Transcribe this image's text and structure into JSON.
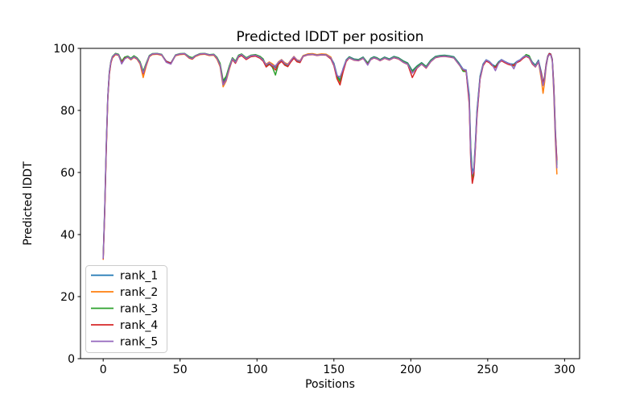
{
  "chart_data": {
    "type": "line",
    "title": "Predicted lDDT per position",
    "xlabel": "Positions",
    "ylabel": "Predicted lDDT",
    "xlim": [
      -14.75,
      309.75
    ],
    "ylim": [
      0,
      100
    ],
    "xticks": [
      0,
      50,
      100,
      150,
      200,
      250,
      300
    ],
    "yticks": [
      0,
      20,
      40,
      60,
      80,
      100
    ],
    "grid": false,
    "legend_position": "lower left",
    "x": [
      0,
      1,
      2,
      3,
      4,
      5,
      6,
      8,
      10,
      12,
      14,
      16,
      18,
      20,
      22,
      24,
      26,
      28,
      30,
      32,
      35,
      38,
      41,
      44,
      47,
      50,
      53,
      56,
      58,
      60,
      63,
      66,
      69,
      72,
      74,
      76,
      78,
      80,
      82,
      84,
      86,
      88,
      90,
      93,
      96,
      99,
      102,
      104,
      106,
      108,
      110,
      112,
      114,
      116,
      118,
      120,
      122,
      124,
      126,
      128,
      130,
      133,
      136,
      139,
      142,
      145,
      148,
      150,
      152,
      154,
      156,
      158,
      160,
      163,
      166,
      169,
      172,
      174,
      176,
      178,
      180,
      183,
      186,
      189,
      192,
      195,
      198,
      201,
      204,
      207,
      210,
      213,
      216,
      219,
      222,
      225,
      228,
      231,
      234,
      236,
      238,
      239,
      240,
      241,
      242,
      243,
      245,
      247,
      249,
      251,
      253,
      255,
      257,
      259,
      261,
      263,
      265,
      267,
      269,
      271,
      273,
      275,
      277,
      279,
      281,
      283,
      285,
      286,
      287,
      288,
      289,
      290,
      291,
      292,
      293,
      294,
      295
    ],
    "series": [
      {
        "name": "rank_1",
        "color": "#1f77b4",
        "values": [
          32.5,
          48,
          68,
          84,
          92,
          95.5,
          97.2,
          98.3,
          98.0,
          95.6,
          97.0,
          97.4,
          96.6,
          97.4,
          96.8,
          95.5,
          92.2,
          95.0,
          97.6,
          98.2,
          98.3,
          98.0,
          95.9,
          95.3,
          97.8,
          98.2,
          98.3,
          97.1,
          96.8,
          97.6,
          98.2,
          98.3,
          97.9,
          98.0,
          96.9,
          94.8,
          89.2,
          90.5,
          94.0,
          96.8,
          95.7,
          97.6,
          98.1,
          96.8,
          97.7,
          97.9,
          97.2,
          96.4,
          94.6,
          95.3,
          94.7,
          93.8,
          95.4,
          96.2,
          95.1,
          94.6,
          96.0,
          97.2,
          96.1,
          95.8,
          97.6,
          98.1,
          98.2,
          97.9,
          98.1,
          98.0,
          97.0,
          95.2,
          91.5,
          89.8,
          93.5,
          96.3,
          97.3,
          96.6,
          96.4,
          97.2,
          95.3,
          96.8,
          97.3,
          97.0,
          96.4,
          97.2,
          96.6,
          97.4,
          97.0,
          96.0,
          95.3,
          92.8,
          94.3,
          95.4,
          94.2,
          96.2,
          97.4,
          97.7,
          97.8,
          97.6,
          97.3,
          95.5,
          93.3,
          93.0,
          85.0,
          68.0,
          60.0,
          61.5,
          70.0,
          80.0,
          91.0,
          95.0,
          96.3,
          95.8,
          94.8,
          94.2,
          95.6,
          96.4,
          95.8,
          95.3,
          95.0,
          94.9,
          95.8,
          96.3,
          97.2,
          97.8,
          97.3,
          95.6,
          94.6,
          96.2,
          92.0,
          88.8,
          91.0,
          95.0,
          97.5,
          98.4,
          98.2,
          96.5,
          88.0,
          74.0,
          63.0
        ]
      },
      {
        "name": "rank_2",
        "color": "#ff7f0e",
        "values": [
          32.0,
          47,
          67,
          83.5,
          91.5,
          95.2,
          96.9,
          98.0,
          97.7,
          95.2,
          96.7,
          97.1,
          96.3,
          97.1,
          96.5,
          95.0,
          90.6,
          94.4,
          97.3,
          98.0,
          98.1,
          97.8,
          95.6,
          95.0,
          97.6,
          98.0,
          98.1,
          96.8,
          96.5,
          97.4,
          98.0,
          98.1,
          97.7,
          97.8,
          96.5,
          94.1,
          87.6,
          89.5,
          93.3,
          96.5,
          95.4,
          97.3,
          97.8,
          96.5,
          97.4,
          97.6,
          96.9,
          96.1,
          94.9,
          95.6,
          95.0,
          94.2,
          95.7,
          96.4,
          95.4,
          94.9,
          96.2,
          97.4,
          96.3,
          96.0,
          97.7,
          98.2,
          98.3,
          98.0,
          98.2,
          98.1,
          97.2,
          94.6,
          90.6,
          89.0,
          92.8,
          96.0,
          97.1,
          96.4,
          96.2,
          97.0,
          95.0,
          96.6,
          97.1,
          96.8,
          96.2,
          97.0,
          96.4,
          97.2,
          96.8,
          95.7,
          95.0,
          92.2,
          94.0,
          95.1,
          93.9,
          95.9,
          97.2,
          97.5,
          97.6,
          97.4,
          97.1,
          95.2,
          93.0,
          92.7,
          83.0,
          65.0,
          57.5,
          60.0,
          68.5,
          78.5,
          90.2,
          94.6,
          96.0,
          95.5,
          94.5,
          93.9,
          95.3,
          96.1,
          95.5,
          95.0,
          94.7,
          94.6,
          95.5,
          96.0,
          96.9,
          97.5,
          97.0,
          95.2,
          94.2,
          95.8,
          89.5,
          85.5,
          89.0,
          94.0,
          97.0,
          98.1,
          97.9,
          95.8,
          85.0,
          70.0,
          59.5
        ]
      },
      {
        "name": "rank_3",
        "color": "#2ca02c",
        "values": [
          32.8,
          49,
          69,
          84.5,
          92.5,
          95.8,
          97.4,
          98.4,
          98.1,
          95.9,
          97.2,
          97.5,
          96.8,
          97.6,
          97.0,
          95.7,
          92.6,
          95.3,
          97.7,
          98.3,
          98.4,
          98.1,
          95.7,
          95.1,
          97.9,
          98.3,
          98.4,
          97.3,
          97.0,
          97.7,
          98.3,
          98.4,
          98.0,
          98.1,
          97.1,
          95.2,
          89.6,
          91.0,
          94.4,
          97.0,
          95.9,
          97.8,
          98.2,
          97.0,
          97.8,
          98.0,
          97.4,
          96.6,
          94.3,
          95.0,
          93.9,
          91.4,
          95.1,
          96.0,
          94.9,
          94.4,
          95.8,
          97.0,
          95.9,
          95.6,
          97.5,
          98.0,
          98.1,
          97.8,
          98.0,
          97.9,
          96.8,
          95.0,
          91.0,
          89.4,
          93.2,
          96.2,
          97.2,
          96.5,
          96.3,
          97.1,
          95.2,
          96.7,
          97.2,
          96.9,
          96.3,
          97.1,
          96.5,
          97.3,
          96.9,
          95.9,
          95.2,
          92.6,
          94.2,
          95.3,
          94.1,
          96.1,
          97.3,
          97.6,
          97.7,
          97.5,
          97.2,
          95.3,
          92.6,
          92.5,
          84.0,
          66.5,
          58.5,
          60.8,
          69.3,
          79.3,
          90.6,
          94.8,
          96.1,
          95.6,
          94.6,
          94.0,
          95.4,
          96.2,
          95.6,
          95.1,
          94.8,
          94.3,
          95.6,
          96.1,
          97.0,
          98.0,
          97.6,
          95.4,
          94.4,
          96.0,
          91.0,
          88.3,
          90.5,
          94.5,
          97.2,
          98.2,
          98.0,
          96.1,
          87.0,
          72.5,
          62.5
        ]
      },
      {
        "name": "rank_4",
        "color": "#d62728",
        "values": [
          32.2,
          47.5,
          67.5,
          84.0,
          91.8,
          95.3,
          97.0,
          98.1,
          97.8,
          95.4,
          96.8,
          97.2,
          96.4,
          97.2,
          96.6,
          95.2,
          91.8,
          94.7,
          97.4,
          98.1,
          98.2,
          97.9,
          95.8,
          95.2,
          97.7,
          98.1,
          98.2,
          96.9,
          96.6,
          97.5,
          98.1,
          98.2,
          97.8,
          97.9,
          96.7,
          94.5,
          88.6,
          90.0,
          93.6,
          96.4,
          95.2,
          97.2,
          97.7,
          96.4,
          97.3,
          97.5,
          96.8,
          95.9,
          94.0,
          94.8,
          94.2,
          93.0,
          94.9,
          95.8,
          94.6,
          94.1,
          95.6,
          96.8,
          95.7,
          95.4,
          97.4,
          97.9,
          98.0,
          97.7,
          97.9,
          97.8,
          96.6,
          94.4,
          90.2,
          88.2,
          92.4,
          95.8,
          96.9,
          96.2,
          96.0,
          96.8,
          94.8,
          96.4,
          96.9,
          96.6,
          96.0,
          96.8,
          96.2,
          97.0,
          96.6,
          95.5,
          94.8,
          90.6,
          93.6,
          94.9,
          93.6,
          95.7,
          97.0,
          97.3,
          97.4,
          97.2,
          96.9,
          95.0,
          93.1,
          92.6,
          82.0,
          63.5,
          56.5,
          59.0,
          68.0,
          78.0,
          90.0,
          94.4,
          95.9,
          95.4,
          94.4,
          93.8,
          95.2,
          96.0,
          95.4,
          94.9,
          94.6,
          94.5,
          95.4,
          95.9,
          96.8,
          97.4,
          96.9,
          95.0,
          94.0,
          95.6,
          91.5,
          88.6,
          90.7,
          94.7,
          97.3,
          98.3,
          98.1,
          96.3,
          87.5,
          73.0,
          64.0
        ]
      },
      {
        "name": "rank_5",
        "color": "#9467bd",
        "values": [
          32.4,
          48.5,
          68.5,
          84.2,
          92.2,
          95.6,
          97.3,
          98.2,
          97.9,
          95.0,
          96.6,
          97.3,
          96.5,
          97.3,
          96.7,
          95.3,
          92.0,
          94.9,
          97.5,
          98.2,
          98.3,
          98.0,
          95.5,
          94.9,
          97.8,
          98.2,
          98.3,
          97.0,
          96.7,
          97.6,
          98.2,
          98.3,
          97.9,
          98.0,
          96.8,
          94.6,
          88.2,
          89.8,
          93.8,
          96.7,
          95.5,
          97.5,
          98.0,
          96.7,
          97.6,
          97.8,
          97.1,
          96.2,
          94.7,
          95.4,
          94.5,
          94.4,
          95.5,
          96.3,
          95.2,
          94.7,
          96.1,
          97.3,
          96.2,
          95.9,
          97.5,
          98.0,
          98.1,
          97.8,
          98.0,
          97.9,
          96.9,
          94.8,
          91.2,
          90.8,
          93.3,
          96.1,
          97.0,
          96.3,
          96.1,
          96.9,
          94.6,
          96.5,
          97.0,
          96.7,
          96.1,
          96.9,
          96.3,
          97.1,
          96.7,
          95.6,
          94.9,
          92.0,
          93.8,
          95.0,
          93.8,
          95.8,
          97.1,
          97.4,
          97.5,
          97.3,
          97.0,
          95.1,
          93.2,
          92.9,
          83.5,
          64.5,
          59.5,
          60.5,
          69.0,
          79.0,
          90.4,
          94.7,
          96.2,
          95.7,
          94.7,
          92.8,
          95.1,
          96.3,
          95.7,
          95.2,
          94.9,
          93.4,
          95.7,
          96.2,
          97.1,
          97.6,
          97.1,
          95.3,
          94.1,
          95.9,
          90.5,
          88.0,
          90.0,
          94.2,
          97.1,
          98.0,
          97.8,
          96.0,
          86.0,
          71.5,
          61.5
        ]
      }
    ]
  }
}
